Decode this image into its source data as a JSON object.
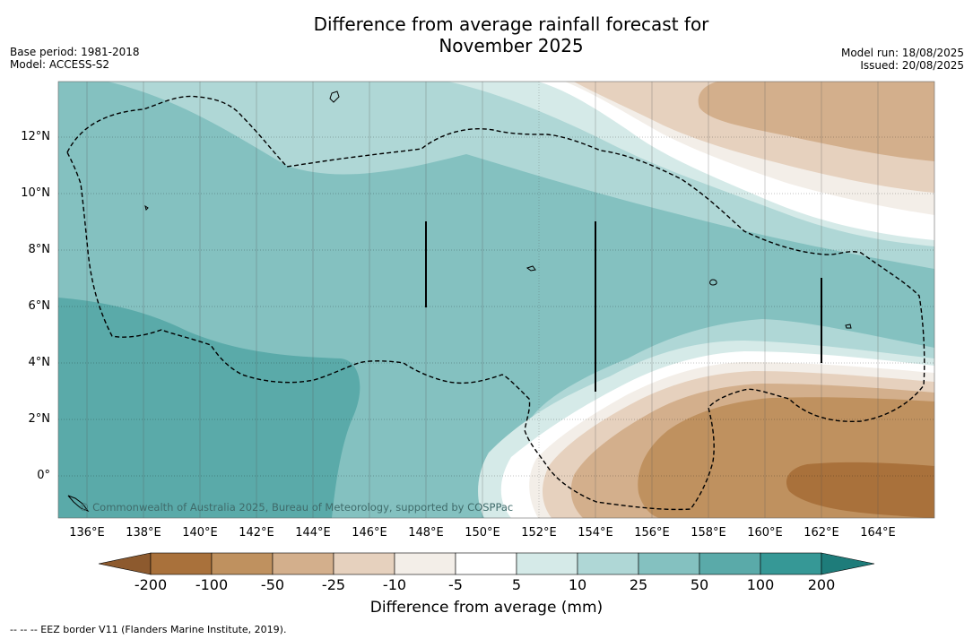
{
  "title": {
    "line1": "Difference from average rainfall forecast for",
    "line2": "November 2025"
  },
  "meta": {
    "base_period": "Base period: 1981-2018",
    "model": "Model: ACCESS-S2",
    "model_run": "Model run: 18/08/2025",
    "issued": "Issued: 20/08/2025"
  },
  "map": {
    "lat_labels": [
      "12°N",
      "10°N",
      "8°N",
      "6°N",
      "4°N",
      "2°N",
      "0°"
    ],
    "lon_labels": [
      "136°E",
      "138°E",
      "140°E",
      "142°E",
      "144°E",
      "146°E",
      "148°E",
      "150°E",
      "152°E",
      "154°E",
      "156°E",
      "158°E",
      "160°E",
      "162°E",
      "164°E"
    ],
    "copyright": "© Commonwealth of Australia 2025, Bureau of Meteorology, supported by COSPPac"
  },
  "colorbar": {
    "labels": [
      "-200",
      "-100",
      "-50",
      "-25",
      "-10",
      "-5",
      "5",
      "10",
      "25",
      "50",
      "100",
      "200"
    ],
    "colors": [
      "#a9713b",
      "#bf915f",
      "#d3af8c",
      "#e6d1be",
      "#f3eee8",
      "#ffffff",
      "#d5eae8",
      "#afd7d6",
      "#84c1c0",
      "#5aaaa9",
      "#369896"
    ],
    "end_low_color": "#8d5a2e",
    "end_high_color": "#1e7c7a",
    "title": "Difference from average (mm)"
  },
  "footer": "--  --  -- EEZ border V11 (Flanders Marine Institute, 2019)."
}
